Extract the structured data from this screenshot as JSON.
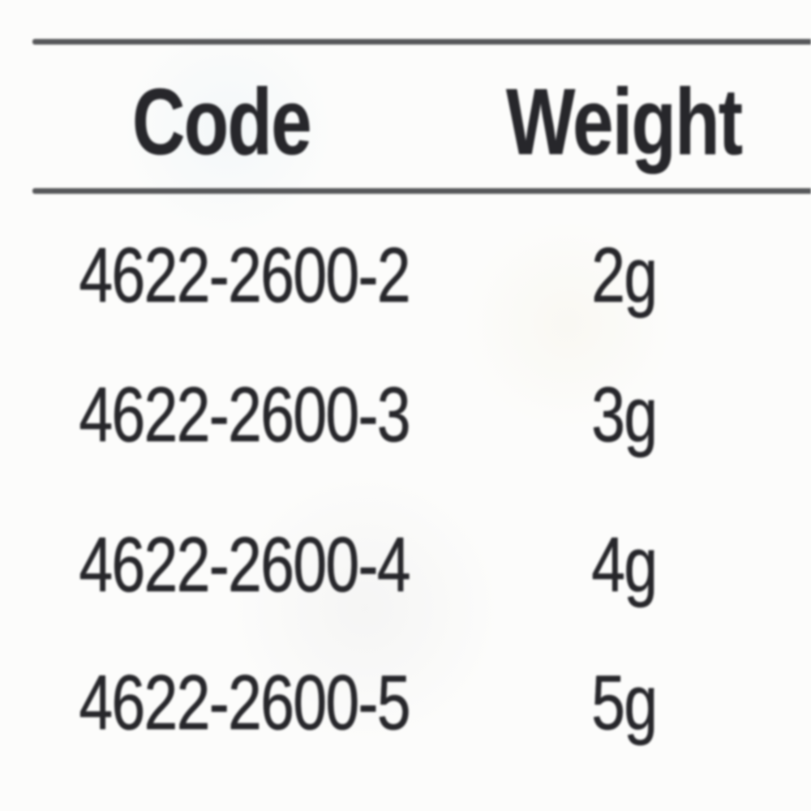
{
  "page": {
    "background_color": "#fcfcfb",
    "text_color": "#27272b",
    "rule_color": "#57585a"
  },
  "table": {
    "columns": {
      "code": "Code",
      "weight": "Weight"
    },
    "rows": [
      {
        "code": "4622-2600-2",
        "weight": "2g"
      },
      {
        "code": "4622-2600-3",
        "weight": "3g"
      },
      {
        "code": "4622-2600-4",
        "weight": "4g"
      },
      {
        "code": "4622-2600-5",
        "weight": "5g"
      }
    ]
  }
}
